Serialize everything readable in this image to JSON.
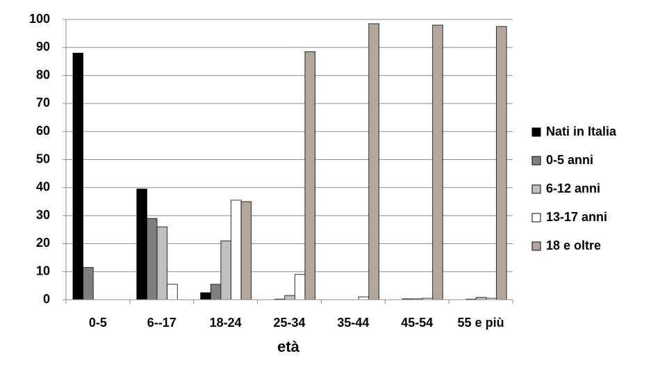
{
  "chart_data": {
    "type": "bar",
    "x_label": "età",
    "categories": [
      "0-5",
      "6--17",
      "18-24",
      "25-34",
      "35-44",
      "45-54",
      "55 e più"
    ],
    "series": [
      {
        "name": "Nati in Italia",
        "color": "#000000",
        "values": [
          88,
          39.5,
          2.5,
          0,
          0,
          0,
          0
        ]
      },
      {
        "name": "0-5 anni",
        "color": "#7f7f7f",
        "values": [
          11.5,
          29,
          5.5,
          0.2,
          0,
          0.3,
          0.2
        ]
      },
      {
        "name": "6-12 anni",
        "color": "#c0c0c0",
        "values": [
          0,
          26,
          21,
          1.5,
          0,
          0.3,
          0.8
        ]
      },
      {
        "name": "13-17 anni",
        "color": "#ffffff",
        "values": [
          0,
          5.5,
          35.5,
          9,
          1,
          0.5,
          0.5
        ]
      },
      {
        "name": "18 e oltre",
        "color": "#b3a79c",
        "values": [
          0,
          0,
          35,
          88.5,
          98.5,
          98,
          97.5
        ]
      }
    ],
    "ylim": [
      0,
      100
    ],
    "yticks": [
      0,
      10,
      20,
      30,
      40,
      50,
      60,
      70,
      80,
      90,
      100
    ],
    "grid": true,
    "legend": "right"
  }
}
